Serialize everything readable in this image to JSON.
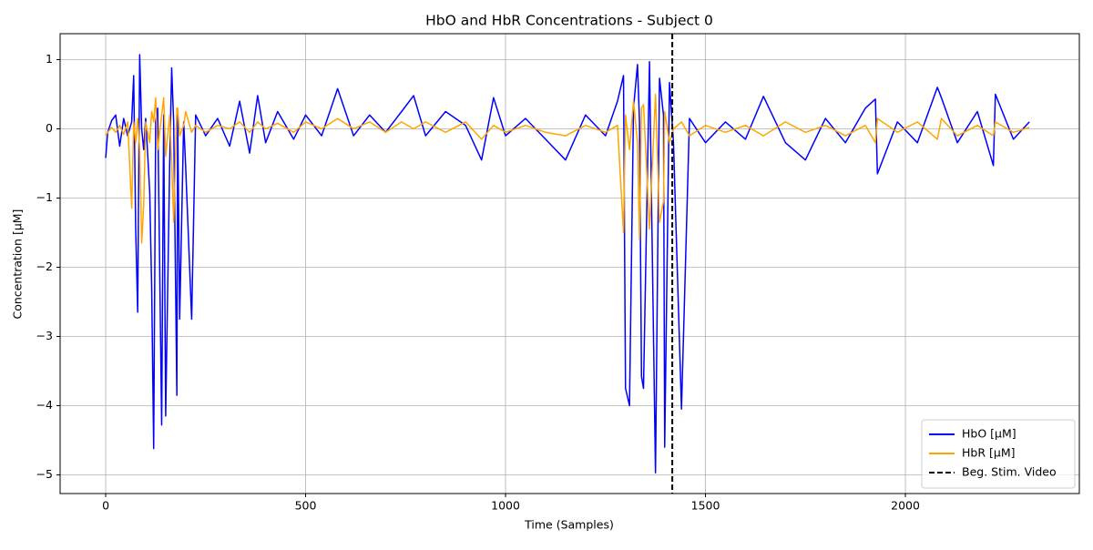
{
  "chart_data": {
    "type": "line",
    "title": "HbO and HbR Concentrations - Subject 0",
    "x_label": "Time (Samples)",
    "y_label": "Concentration [µM]",
    "x": [
      0,
      5,
      15,
      25,
      35,
      45,
      55,
      65,
      70,
      75,
      80,
      85,
      90,
      95,
      100,
      110,
      115,
      120,
      125,
      130,
      140,
      145,
      150,
      160,
      165,
      170,
      178,
      180,
      185,
      195,
      200,
      215,
      225,
      250,
      280,
      310,
      335,
      360,
      380,
      400,
      430,
      470,
      500,
      540,
      580,
      620,
      660,
      700,
      740,
      770,
      800,
      850,
      900,
      940,
      970,
      1000,
      1050,
      1100,
      1150,
      1200,
      1250,
      1280,
      1295,
      1300,
      1310,
      1320,
      1330,
      1335,
      1340,
      1345,
      1360,
      1375,
      1385,
      1395,
      1398,
      1410,
      1420,
      1440,
      1460,
      1500,
      1550,
      1600,
      1645,
      1700,
      1750,
      1800,
      1850,
      1900,
      1925,
      1930,
      1980,
      2030,
      2080,
      2090,
      2130,
      2180,
      2220,
      2225,
      2270,
      2310
    ],
    "series": [
      {
        "name": "HbO [µM]",
        "color": "#0000ff",
        "values": [
          -0.42,
          -0.05,
          0.12,
          0.2,
          -0.25,
          0.15,
          -0.1,
          0.1,
          0.77,
          -1.45,
          -2.65,
          1.07,
          0.0,
          -0.3,
          0.15,
          -0.9,
          -2.3,
          -4.62,
          0.1,
          0.3,
          -4.28,
          0.2,
          -4.15,
          -0.5,
          0.88,
          0.1,
          -3.85,
          0.2,
          -2.75,
          0.1,
          -0.55,
          -2.75,
          0.2,
          -0.1,
          0.15,
          -0.25,
          0.4,
          -0.35,
          0.48,
          -0.2,
          0.25,
          -0.15,
          0.2,
          -0.1,
          0.58,
          -0.1,
          0.2,
          -0.05,
          0.25,
          0.48,
          -0.1,
          0.25,
          0.05,
          -0.45,
          0.45,
          -0.1,
          0.15,
          -0.15,
          -0.45,
          0.2,
          -0.1,
          0.4,
          0.77,
          -3.75,
          -4.0,
          0.3,
          0.93,
          0.1,
          -3.58,
          -3.75,
          0.97,
          -4.97,
          0.73,
          0.2,
          -4.6,
          0.67,
          -0.2,
          -4.05,
          0.15,
          -0.2,
          0.1,
          -0.15,
          0.47,
          -0.2,
          -0.45,
          0.15,
          -0.2,
          0.3,
          0.43,
          -0.65,
          0.1,
          -0.2,
          0.6,
          0.45,
          -0.2,
          0.25,
          -0.53,
          0.5,
          -0.15,
          0.1
        ]
      },
      {
        "name": "HbR [µM]",
        "color": "#ffa500",
        "values": [
          -0.1,
          -0.05,
          0.02,
          -0.05,
          0.05,
          -0.08,
          0.1,
          -1.15,
          0.1,
          -0.2,
          0.15,
          -0.3,
          -1.65,
          -1.1,
          0.1,
          -0.2,
          0.25,
          0.1,
          0.45,
          -0.3,
          0.2,
          0.45,
          -0.4,
          0.2,
          -0.5,
          -1.35,
          0.3,
          0.3,
          -0.1,
          0.05,
          0.25,
          -0.05,
          0.05,
          -0.05,
          0.05,
          0.0,
          0.1,
          -0.05,
          0.1,
          0.0,
          0.08,
          -0.05,
          0.1,
          0.0,
          0.15,
          0.0,
          0.1,
          -0.05,
          0.1,
          0.0,
          0.1,
          -0.05,
          0.1,
          -0.15,
          0.05,
          -0.05,
          0.05,
          -0.05,
          -0.1,
          0.05,
          -0.05,
          0.05,
          -1.5,
          0.2,
          -0.3,
          0.4,
          -0.2,
          -1.6,
          0.3,
          0.35,
          -1.45,
          0.5,
          -1.35,
          -1.05,
          0.25,
          -0.2,
          0.0,
          0.1,
          -0.1,
          0.05,
          -0.05,
          0.05,
          -0.1,
          0.1,
          -0.05,
          0.05,
          -0.1,
          0.05,
          -0.2,
          0.15,
          -0.05,
          0.1,
          -0.15,
          0.15,
          -0.1,
          0.05,
          -0.1,
          0.1,
          -0.05,
          0.02
        ]
      }
    ],
    "vlines": [
      {
        "x": 1417,
        "name": "Beg. Stim. Video",
        "color": "#000000",
        "style": "dashed"
      }
    ],
    "xlim": [
      -114,
      2435
    ],
    "ylim": [
      -5.27,
      1.375
    ],
    "xticks": [
      0,
      500,
      1000,
      1500,
      2000
    ],
    "yticks": [
      {
        "value": -5,
        "label": "−5"
      },
      {
        "value": -4,
        "label": "−4"
      },
      {
        "value": -3,
        "label": "−3"
      },
      {
        "value": -2,
        "label": "−2"
      },
      {
        "value": -1,
        "label": "−1"
      },
      0,
      1
    ],
    "grid": true,
    "legend": "lower right"
  }
}
